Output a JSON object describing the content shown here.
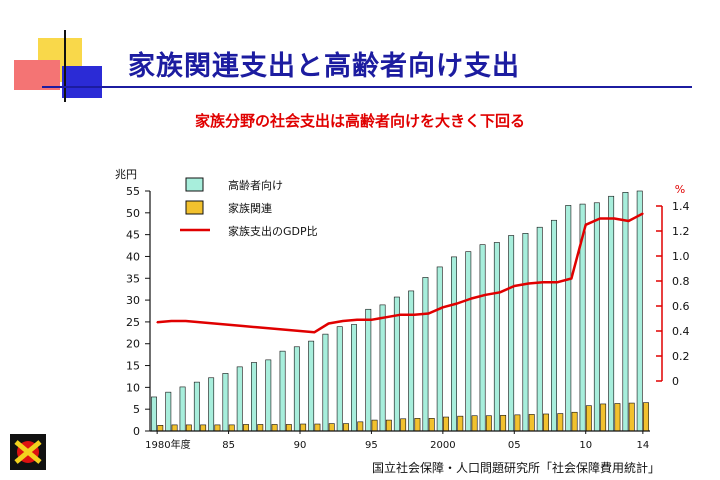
{
  "slide": {
    "title": "家族関連支出と高齢者向け支出",
    "subtitle": "家族分野の社会支出は高齢者向けを大きく下回る",
    "source": "国立社会保障・人口問題研究所「社会保障費用統計」"
  },
  "colors": {
    "title": "#1c1ca0",
    "subtitle": "#e00000",
    "elderly_bar": "#a8eedc",
    "family_bar": "#f2c12e",
    "gdp_line": "#e00000"
  },
  "chart_data": {
    "type": "bar",
    "left_axis_unit": "兆円",
    "right_axis_unit": "%",
    "ylim": [
      0,
      55
    ],
    "y2lim": [
      0,
      1.4
    ],
    "left_ticks": [
      "0",
      "5",
      "10",
      "15",
      "20",
      "25",
      "30",
      "35",
      "40",
      "45",
      "50",
      "55"
    ],
    "right_ticks": [
      "0",
      "0.2",
      "0.4",
      "0.6",
      "0.8",
      "1.0",
      "1.2",
      "1.4"
    ],
    "x_tick_labels": [
      {
        "year": 1980,
        "label": "1980年度"
      },
      {
        "year": 1985,
        "label": "85"
      },
      {
        "year": 1990,
        "label": "90"
      },
      {
        "year": 1995,
        "label": "95"
      },
      {
        "year": 2000,
        "label": "2000"
      },
      {
        "year": 2005,
        "label": "05"
      },
      {
        "year": 2010,
        "label": "10"
      },
      {
        "year": 2014,
        "label": "14"
      }
    ],
    "categories": [
      1980,
      1981,
      1982,
      1983,
      1984,
      1985,
      1986,
      1987,
      1988,
      1989,
      1990,
      1991,
      1992,
      1993,
      1994,
      1995,
      1996,
      1997,
      1998,
      1999,
      2000,
      2001,
      2002,
      2003,
      2004,
      2005,
      2006,
      2007,
      2008,
      2009,
      2010,
      2011,
      2012,
      2013,
      2014
    ],
    "legend": [
      "高齢者向け",
      "家族関連",
      "家族支出のGDP比"
    ],
    "series": [
      {
        "name": "高齢者向け",
        "kind": "bar",
        "axis": "left",
        "values": [
          7.8,
          8.9,
          10.1,
          11.2,
          12.2,
          13.2,
          14.7,
          15.7,
          16.3,
          18.3,
          19.3,
          20.6,
          22.2,
          23.9,
          24.4,
          27.9,
          28.9,
          30.7,
          32.1,
          35.2,
          37.6,
          39.9,
          41.1,
          42.7,
          43.2,
          44.8,
          45.3,
          46.7,
          48.3,
          51.7,
          52.0,
          52.3,
          53.8,
          54.7,
          55.0
        ]
      },
      {
        "name": "家族関連",
        "kind": "bar",
        "axis": "left",
        "values": [
          1.3,
          1.4,
          1.4,
          1.4,
          1.4,
          1.4,
          1.5,
          1.5,
          1.5,
          1.5,
          1.6,
          1.6,
          1.7,
          1.7,
          2.1,
          2.5,
          2.5,
          2.8,
          2.9,
          2.9,
          3.2,
          3.4,
          3.5,
          3.5,
          3.6,
          3.7,
          3.8,
          3.9,
          4.0,
          4.3,
          5.8,
          6.2,
          6.3,
          6.4,
          6.5
        ]
      },
      {
        "name": "家族支出のGDP比",
        "kind": "line",
        "axis": "right",
        "values": [
          0.47,
          0.48,
          0.48,
          0.47,
          0.46,
          0.45,
          0.44,
          0.43,
          0.42,
          0.41,
          0.4,
          0.39,
          0.46,
          0.48,
          0.49,
          0.49,
          0.51,
          0.53,
          0.53,
          0.54,
          0.59,
          0.62,
          0.66,
          0.69,
          0.71,
          0.76,
          0.78,
          0.79,
          0.79,
          0.82,
          1.25,
          1.3,
          1.3,
          1.28,
          1.34
        ]
      }
    ]
  }
}
